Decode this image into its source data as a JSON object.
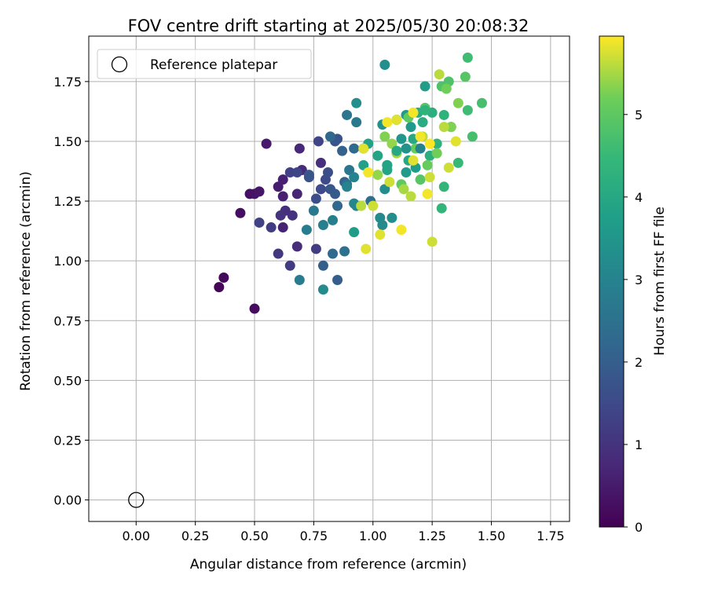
{
  "chart_data": {
    "type": "scatter",
    "title": "FOV centre drift starting at 2025/05/30 20:08:32",
    "xlabel": "Angular distance from reference (arcmin)",
    "ylabel": "Rotation from reference (arcmin)",
    "xlim": [
      -0.2,
      1.83
    ],
    "ylim": [
      -0.09,
      1.94
    ],
    "xticks": [
      "0.00",
      "0.25",
      "0.50",
      "0.75",
      "1.00",
      "1.25",
      "1.50",
      "1.75"
    ],
    "yticks": [
      "0.00",
      "0.25",
      "0.50",
      "0.75",
      "1.00",
      "1.25",
      "1.50",
      "1.75"
    ],
    "grid": true,
    "legend": {
      "position": "top-left",
      "entries": [
        "Reference platepar"
      ]
    },
    "reference_point": {
      "x": 0.0,
      "y": 0.0,
      "name": "Reference platepar"
    },
    "colorbar": {
      "label": "Hours from first FF file",
      "colormap": "viridis",
      "range": [
        0,
        5.95
      ],
      "ticks": [
        "0",
        "1",
        "2",
        "3",
        "4",
        "5"
      ]
    },
    "series": [
      {
        "points": [
          [
            0.35,
            0.89,
            0.1
          ],
          [
            0.37,
            0.93,
            0.15
          ],
          [
            0.5,
            0.8,
            0.2
          ],
          [
            0.44,
            1.2,
            0.25
          ],
          [
            0.48,
            1.28,
            0.3
          ],
          [
            0.5,
            1.28,
            0.35
          ],
          [
            0.52,
            1.29,
            0.4
          ],
          [
            0.55,
            1.49,
            0.5
          ],
          [
            0.6,
            1.31,
            0.55
          ],
          [
            0.62,
            1.34,
            0.6
          ],
          [
            0.62,
            1.27,
            0.6
          ],
          [
            0.62,
            1.14,
            0.65
          ],
          [
            0.68,
            1.28,
            0.7
          ],
          [
            0.69,
            1.47,
            0.75
          ],
          [
            0.7,
            1.38,
            0.8
          ],
          [
            0.68,
            1.06,
            0.85
          ],
          [
            0.63,
            1.21,
            0.9
          ],
          [
            0.66,
            1.19,
            0.95
          ],
          [
            0.78,
            1.41,
            0.9
          ],
          [
            0.61,
            1.19,
            1.0
          ],
          [
            0.6,
            1.03,
            1.1
          ],
          [
            0.65,
            0.98,
            1.2
          ],
          [
            0.57,
            1.14,
            1.2
          ],
          [
            0.52,
            1.16,
            1.3
          ],
          [
            0.65,
            1.37,
            1.3
          ],
          [
            0.68,
            1.37,
            1.4
          ],
          [
            0.76,
            1.05,
            1.2
          ],
          [
            0.77,
            1.5,
            1.4
          ],
          [
            0.78,
            1.3,
            1.5
          ],
          [
            0.8,
            1.34,
            1.5
          ],
          [
            0.81,
            1.37,
            1.6
          ],
          [
            0.76,
            1.26,
            1.6
          ],
          [
            0.73,
            1.35,
            1.7
          ],
          [
            0.73,
            1.36,
            1.8
          ],
          [
            0.82,
            1.3,
            1.8
          ],
          [
            0.84,
            1.28,
            1.9
          ],
          [
            0.85,
            1.51,
            1.7
          ],
          [
            0.84,
            1.5,
            1.8
          ],
          [
            0.79,
            0.98,
            2.0
          ],
          [
            0.85,
            0.92,
            2.0
          ],
          [
            0.87,
            1.46,
            2.1
          ],
          [
            0.88,
            1.33,
            2.1
          ],
          [
            0.82,
            1.52,
            2.2
          ],
          [
            0.85,
            1.23,
            2.2
          ],
          [
            0.83,
            1.03,
            2.3
          ],
          [
            0.92,
            1.47,
            2.3
          ],
          [
            0.96,
            1.47,
            2.4
          ],
          [
            0.99,
            1.25,
            2.4
          ],
          [
            0.89,
            1.32,
            2.5
          ],
          [
            0.88,
            1.04,
            2.5
          ],
          [
            0.89,
            1.61,
            2.6
          ],
          [
            0.9,
            1.38,
            2.6
          ],
          [
            0.93,
            1.58,
            2.7
          ],
          [
            0.75,
            1.21,
            2.7
          ],
          [
            0.72,
            1.13,
            2.8
          ],
          [
            0.69,
            0.92,
            2.8
          ],
          [
            0.79,
            1.15,
            2.9
          ],
          [
            0.83,
            1.17,
            2.9
          ],
          [
            0.89,
            1.31,
            3.0
          ],
          [
            0.92,
            1.35,
            3.0
          ],
          [
            0.92,
            1.24,
            3.1
          ],
          [
            0.93,
            1.23,
            3.1
          ],
          [
            1.03,
            1.18,
            3.2
          ],
          [
            1.04,
            1.15,
            3.2
          ],
          [
            1.05,
            1.3,
            3.3
          ],
          [
            0.93,
            1.66,
            3.3
          ],
          [
            1.05,
            1.82,
            3.3
          ],
          [
            1.04,
            1.57,
            3.4
          ],
          [
            1.06,
            1.4,
            3.4
          ],
          [
            1.1,
            1.59,
            3.5
          ],
          [
            1.12,
            1.51,
            3.5
          ],
          [
            1.14,
            1.61,
            3.6
          ],
          [
            1.16,
            1.56,
            3.6
          ],
          [
            1.18,
            1.39,
            3.7
          ],
          [
            1.22,
            1.73,
            3.7
          ],
          [
            0.79,
            0.88,
            3.2
          ],
          [
            0.92,
            1.12,
            3.7
          ],
          [
            0.96,
            1.4,
            3.8
          ],
          [
            0.98,
            1.49,
            3.8
          ],
          [
            1.02,
            1.44,
            3.9
          ],
          [
            1.06,
            1.38,
            3.9
          ],
          [
            1.15,
            1.42,
            4.0
          ],
          [
            1.17,
            1.51,
            4.0
          ],
          [
            1.19,
            1.62,
            4.1
          ],
          [
            1.21,
            1.58,
            4.1
          ],
          [
            1.24,
            1.44,
            4.2
          ],
          [
            1.25,
            1.62,
            4.2
          ],
          [
            1.27,
            1.49,
            4.3
          ],
          [
            1.3,
            1.61,
            4.3
          ],
          [
            1.29,
            1.22,
            4.4
          ],
          [
            1.3,
            1.31,
            4.4
          ],
          [
            1.33,
            1.56,
            4.5
          ],
          [
            1.36,
            1.41,
            4.5
          ],
          [
            1.4,
            1.85,
            4.6
          ],
          [
            1.4,
            1.63,
            4.6
          ],
          [
            1.42,
            1.52,
            4.7
          ],
          [
            1.46,
            1.66,
            4.7
          ],
          [
            1.29,
            1.73,
            4.8
          ],
          [
            1.32,
            1.75,
            4.8
          ],
          [
            1.39,
            1.77,
            4.9
          ],
          [
            1.22,
            1.64,
            4.9
          ],
          [
            1.2,
            1.34,
            4.9
          ],
          [
            1.12,
            1.32,
            5.0
          ],
          [
            1.15,
            1.6,
            5.0
          ],
          [
            1.18,
            1.47,
            5.1
          ],
          [
            1.23,
            1.4,
            5.1
          ],
          [
            1.27,
            1.45,
            5.2
          ],
          [
            1.31,
            1.72,
            5.2
          ],
          [
            1.33,
            1.56,
            5.3
          ],
          [
            1.36,
            1.66,
            5.3
          ],
          [
            1.05,
            1.52,
            5.3
          ],
          [
            1.02,
            1.36,
            5.4
          ],
          [
            1.08,
            1.49,
            5.4
          ],
          [
            1.1,
            1.45,
            5.5
          ],
          [
            1.13,
            1.3,
            5.5
          ],
          [
            1.16,
            1.27,
            5.6
          ],
          [
            1.21,
            1.52,
            5.6
          ],
          [
            1.24,
            1.35,
            5.7
          ],
          [
            1.25,
            1.08,
            5.7
          ],
          [
            1.28,
            1.78,
            5.6
          ],
          [
            1.3,
            1.56,
            5.6
          ],
          [
            1.32,
            1.39,
            5.7
          ],
          [
            1.35,
            1.5,
            5.8
          ],
          [
            1.03,
            1.11,
            5.8
          ],
          [
            0.97,
            1.05,
            5.8
          ],
          [
            1.0,
            1.23,
            5.7
          ],
          [
            0.95,
            1.23,
            5.6
          ],
          [
            0.96,
            1.47,
            5.8
          ],
          [
            1.06,
            1.58,
            5.9
          ],
          [
            1.1,
            1.59,
            5.8
          ],
          [
            1.17,
            1.62,
            5.9
          ],
          [
            1.2,
            1.52,
            5.9
          ],
          [
            1.23,
            1.28,
            5.9
          ],
          [
            1.12,
            1.13,
            5.9
          ],
          [
            1.07,
            1.33,
            5.7
          ],
          [
            1.17,
            1.42,
            5.8
          ],
          [
            0.98,
            1.37,
            5.9
          ],
          [
            1.24,
            1.49,
            5.95
          ],
          [
            1.06,
            1.4,
            3.9
          ],
          [
            1.14,
            1.37,
            3.6
          ],
          [
            1.08,
            1.18,
            3.3
          ],
          [
            1.2,
            1.47,
            3.0
          ],
          [
            1.22,
            1.63,
            4.3
          ],
          [
            1.1,
            1.46,
            4.0
          ],
          [
            1.14,
            1.47,
            3.4
          ]
        ]
      }
    ]
  }
}
